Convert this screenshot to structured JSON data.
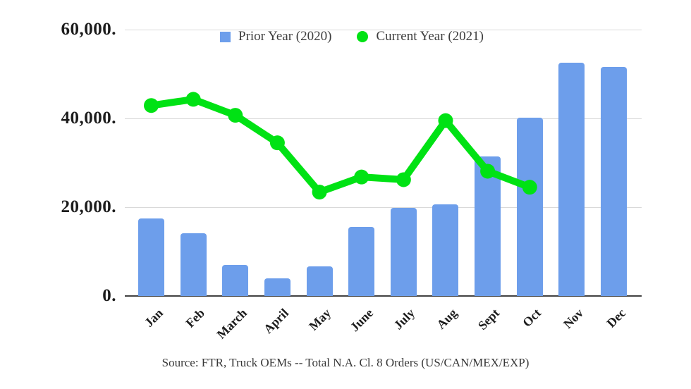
{
  "legend": {
    "items": [
      {
        "label": "Prior Year (2020)",
        "swatch": "square",
        "color": "#6d9eeb"
      },
      {
        "label": "Current Year (2021)",
        "swatch": "circle",
        "color": "#00e214"
      }
    ]
  },
  "source_note": "Source: FTR, Truck OEMs -- Total N.A. Cl. 8 Orders (US/CAN/MEX/EXP)",
  "chart_data": {
    "type": "bar",
    "subtype": "bar-with-line-overlay",
    "title": "",
    "categories": [
      "Jan",
      "Feb",
      "March",
      "April",
      "May",
      "June",
      "July",
      "Aug",
      "Sept",
      "Oct",
      "Nov",
      "Dec"
    ],
    "series": [
      {
        "name": "Prior Year (2020)",
        "type": "bar",
        "color": "#6d9eeb",
        "values": [
          17400,
          14100,
          7000,
          4000,
          6600,
          15500,
          19800,
          20600,
          31500,
          40100,
          52500,
          51600
        ]
      },
      {
        "name": "Current Year (2021)",
        "type": "line",
        "color": "#00e214",
        "values": [
          42900,
          44300,
          40700,
          34500,
          23400,
          26800,
          26200,
          39500,
          28100,
          24500,
          null,
          null
        ]
      }
    ],
    "xlabel": "",
    "ylabel": "",
    "ylim": [
      0,
      60000
    ],
    "yticks": [
      {
        "value": 0,
        "label": "0."
      },
      {
        "value": 20000,
        "label": "20,000."
      },
      {
        "value": 40000,
        "label": "40,000."
      },
      {
        "value": 60000,
        "label": "60,000."
      }
    ],
    "grid": true,
    "legend_position": "top-center",
    "colors": {
      "grid": "#d9d9d9",
      "axis": "#424242",
      "tick_text": "#1c1c1c",
      "legend_text": "#3d3d3d",
      "source_text": "#383838"
    }
  }
}
